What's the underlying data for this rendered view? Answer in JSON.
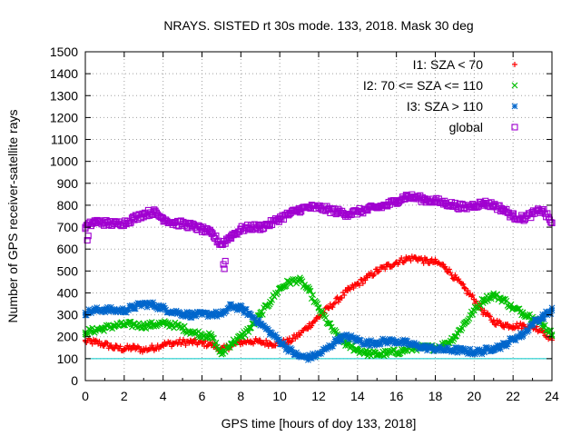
{
  "chart_data": {
    "type": "scatter",
    "title": "NRAYS. SISTED rt 30s mode. 133, 2018. Mask 30 deg",
    "xlabel": "GPS time [hours of doy 133, 2018]",
    "ylabel": "Number of GPS receiver-satellite rays",
    "xlim": [
      0,
      24
    ],
    "ylim": [
      0,
      1500
    ],
    "grid": true,
    "legend_position": "top-right",
    "x_ticks": [
      0,
      2,
      4,
      6,
      8,
      10,
      12,
      14,
      16,
      18,
      20,
      22,
      24
    ],
    "y_ticks": [
      0,
      100,
      200,
      300,
      400,
      500,
      600,
      700,
      800,
      900,
      1000,
      1100,
      1200,
      1300,
      1400,
      1500
    ],
    "reference_line": {
      "y": 100,
      "color": "#00c8c8"
    },
    "series": [
      {
        "name": "I1: SZA < 70",
        "marker": "plus",
        "color": "#ff0000",
        "x": [
          0,
          0.5,
          1,
          1.5,
          2,
          2.5,
          3,
          3.5,
          4,
          4.5,
          5,
          5.5,
          6,
          6.5,
          7,
          7.5,
          8,
          8.5,
          9,
          9.5,
          10,
          10.5,
          11,
          11.5,
          12,
          12.5,
          13,
          13.5,
          14,
          14.5,
          15,
          15.5,
          16,
          16.5,
          17,
          17.5,
          18,
          18.5,
          19,
          19.5,
          20,
          20.5,
          21,
          21.5,
          22,
          22.5,
          23,
          23.5,
          24
        ],
        "y": [
          180,
          175,
          165,
          150,
          145,
          150,
          140,
          150,
          165,
          170,
          175,
          175,
          170,
          165,
          140,
          160,
          175,
          180,
          175,
          170,
          170,
          180,
          210,
          250,
          290,
          330,
          370,
          410,
          440,
          470,
          500,
          520,
          540,
          555,
          560,
          545,
          540,
          520,
          470,
          420,
          370,
          310,
          270,
          255,
          250,
          250,
          245,
          230,
          185
        ]
      },
      {
        "name": "I2: 70 <= SZA <= 110",
        "marker": "cross",
        "color": "#00c000",
        "x": [
          0,
          0.5,
          1,
          1.5,
          2,
          2.5,
          3,
          3.5,
          4,
          4.5,
          5,
          5.5,
          6,
          6.5,
          7,
          7.5,
          8,
          8.5,
          9,
          9.5,
          10,
          10.5,
          11,
          11.5,
          12,
          12.5,
          13,
          13.5,
          14,
          14.5,
          15,
          15.5,
          16,
          16.5,
          17,
          17.5,
          18,
          18.5,
          19,
          19.5,
          20,
          20.5,
          21,
          21.5,
          22,
          22.5,
          23,
          23.5,
          24
        ],
        "y": [
          220,
          230,
          240,
          250,
          255,
          255,
          250,
          255,
          260,
          255,
          240,
          220,
          210,
          200,
          120,
          170,
          200,
          240,
          300,
          360,
          420,
          450,
          460,
          410,
          330,
          260,
          200,
          160,
          140,
          125,
          120,
          125,
          130,
          140,
          150,
          150,
          150,
          165,
          200,
          260,
          320,
          370,
          390,
          370,
          330,
          310,
          290,
          260,
          210
        ]
      },
      {
        "name": "I3: SZA > 110",
        "marker": "star",
        "color": "#0066cc",
        "x": [
          0,
          0.5,
          1,
          1.5,
          2,
          2.5,
          3,
          3.5,
          4,
          4.5,
          5,
          5.5,
          6,
          6.5,
          7,
          7.5,
          8,
          8.5,
          9,
          9.5,
          10,
          10.5,
          11,
          11.5,
          12,
          12.5,
          13,
          13.5,
          14,
          14.5,
          15,
          15.5,
          16,
          16.5,
          17,
          17.5,
          18,
          18.5,
          19,
          19.5,
          20,
          20.5,
          21,
          21.5,
          22,
          22.5,
          23,
          23.5,
          24
        ],
        "y": [
          310,
          320,
          325,
          320,
          320,
          335,
          350,
          345,
          330,
          315,
          305,
          300,
          300,
          305,
          300,
          340,
          330,
          300,
          260,
          220,
          180,
          140,
          110,
          105,
          120,
          150,
          190,
          200,
          185,
          170,
          175,
          180,
          180,
          170,
          160,
          150,
          145,
          140,
          140,
          135,
          130,
          135,
          150,
          160,
          190,
          210,
          260,
          290,
          320
        ]
      },
      {
        "name": "global",
        "marker": "square",
        "color": "#a000d0",
        "x": [
          0,
          0.5,
          1,
          1.5,
          2,
          2.5,
          3,
          3.5,
          4,
          4.5,
          5,
          5.5,
          6,
          6.5,
          7,
          7.5,
          8,
          8.5,
          9,
          9.5,
          10,
          10.5,
          11,
          11.5,
          12,
          12.5,
          13,
          13.5,
          14,
          14.5,
          15,
          15.5,
          16,
          16.5,
          17,
          17.5,
          18,
          18.5,
          19,
          19.5,
          20,
          20.5,
          21,
          21.5,
          22,
          22.5,
          23,
          23.5,
          24
        ],
        "y": [
          700,
          725,
          720,
          715,
          720,
          740,
          760,
          770,
          740,
          720,
          715,
          705,
          690,
          670,
          620,
          660,
          690,
          700,
          700,
          715,
          740,
          760,
          780,
          790,
          790,
          780,
          770,
          760,
          770,
          780,
          790,
          800,
          820,
          840,
          835,
          825,
          820,
          810,
          800,
          790,
          800,
          810,
          800,
          780,
          750,
          740,
          760,
          780,
          720
        ]
      }
    ],
    "outliers": {
      "global": {
        "x": [
          0.1,
          0.15,
          7.1,
          7.15,
          7.2
        ],
        "y": [
          640,
          660,
          530,
          510,
          545
        ]
      }
    }
  }
}
